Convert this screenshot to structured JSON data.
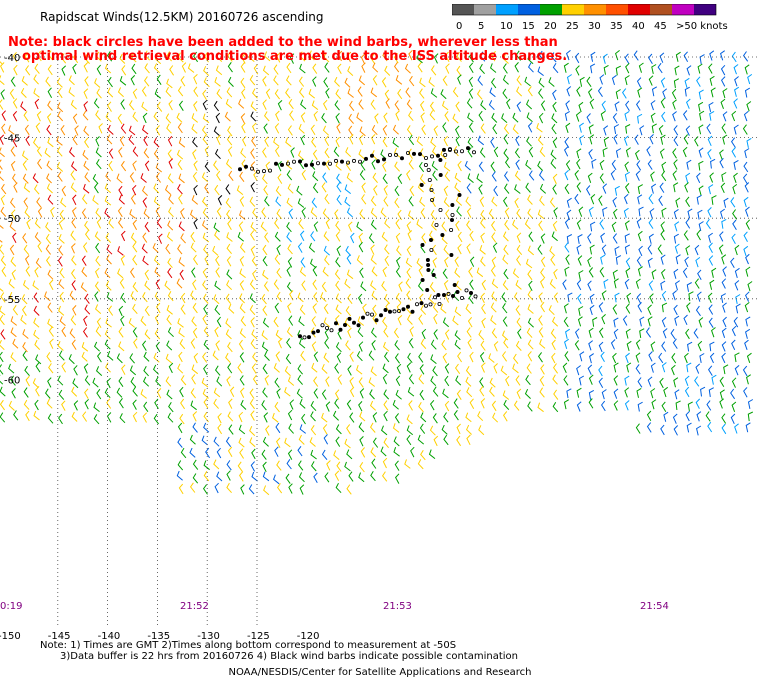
{
  "header": {
    "title": "Rapidscat Winds(12.5KM) 20160726 ascending"
  },
  "note": {
    "line1": "Note: black circles have been added to the wind barbs, wherever less than",
    "line2": "optimal wind retrieval conditions are met due to the ISS altitude changes."
  },
  "color_scale": {
    "labels": [
      "0",
      "5",
      "10",
      "15",
      "20",
      "25",
      "30",
      "35",
      "40",
      "45",
      ">50 knots"
    ],
    "colors": [
      "#555555",
      "#a0a0a0",
      "#00a0ff",
      "#0060e0",
      "#00a000",
      "#ffd000",
      "#ff9000",
      "#ff5000",
      "#e00000",
      "#b05020",
      "#c000c0",
      "#400080"
    ]
  },
  "axes": {
    "lat_labels": [
      "-40",
      "-45",
      "-50",
      "-55",
      "-60"
    ],
    "lon_labels": [
      "-150",
      "-145",
      "-140",
      "-135",
      "-130",
      "-125",
      "-120"
    ]
  },
  "time_labels": [
    "0:19",
    "21:52",
    "21:53",
    "21:54"
  ],
  "footer": {
    "line1": "Note: 1) Times are GMT 2)Times along bottom correspond to measurement at -50S",
    "line2": "3)Data buffer is 22 hrs from 20160726 4) Black wind barbs indicate possible contamination",
    "line3": "NOAA/NESDIS/Center for Satellite Applications and Research"
  }
}
